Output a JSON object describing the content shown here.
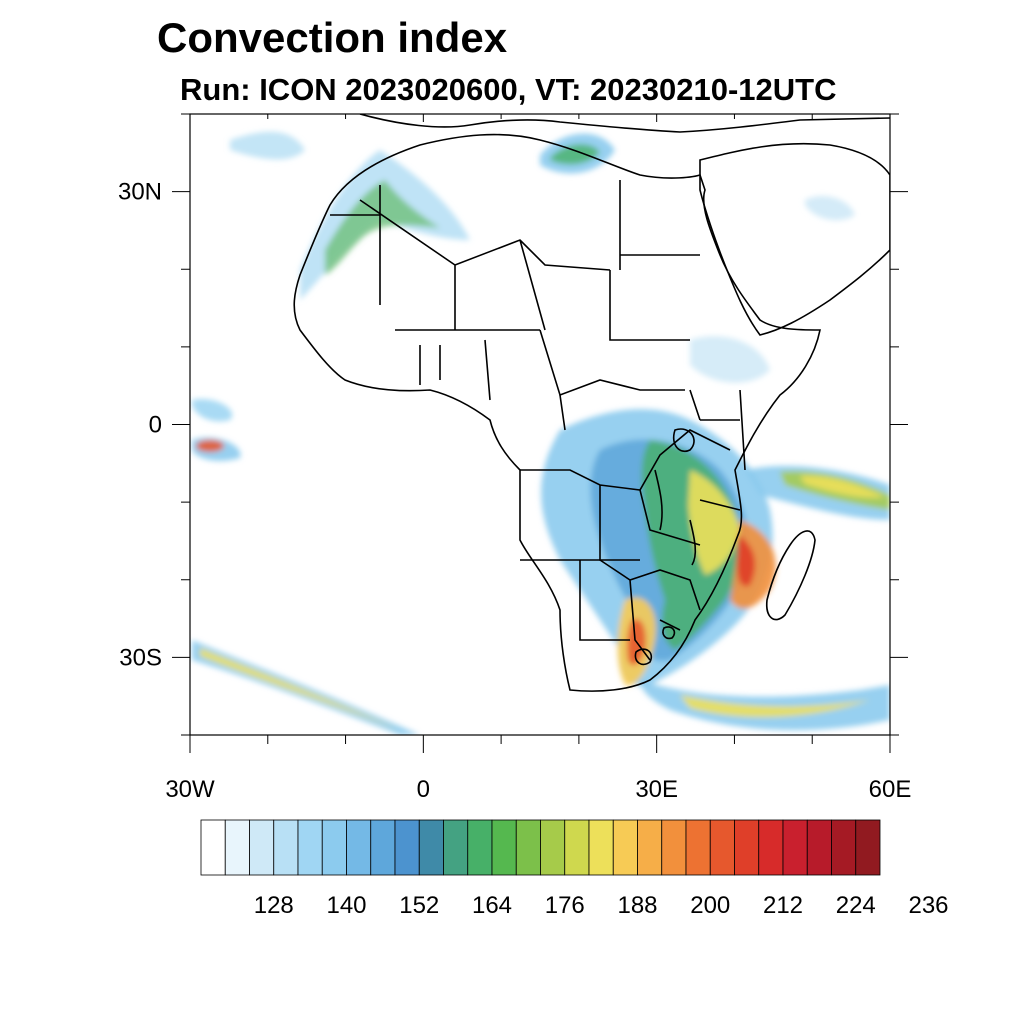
{
  "header": {
    "title": "Convection index",
    "subtitle": "Run: ICON 2023020600,  VT: 20230210-12UTC"
  },
  "map": {
    "lon_range": [
      -30,
      60
    ],
    "lat_range": [
      -40,
      40
    ],
    "lat_ticks": [
      {
        "value": 30,
        "label": "30N"
      },
      {
        "value": 0,
        "label": "0"
      },
      {
        "value": -30,
        "label": "30S"
      }
    ],
    "lon_ticks": [
      {
        "value": -30,
        "label": "30W"
      },
      {
        "value": 0,
        "label": "0"
      },
      {
        "value": 30,
        "label": "30E"
      },
      {
        "value": 60,
        "label": "60E"
      }
    ],
    "field_colors": {
      "low": "#8ecde8",
      "mid": "#4aab5e",
      "high": "#f0d24a",
      "max": "#e0432a"
    }
  },
  "colorbar": {
    "colors": [
      "#ffffff",
      "#e8f5fc",
      "#cfe9f7",
      "#b8e0f5",
      "#a0d6f3",
      "#8ccbee",
      "#74b9e6",
      "#5ea7db",
      "#4c93cf",
      "#3f8aa8",
      "#44a282",
      "#47b068",
      "#55b84f",
      "#7cc04a",
      "#a6cb4a",
      "#cfd84e",
      "#ede05a",
      "#f7cb55",
      "#f6ae48",
      "#f2903c",
      "#ed7232",
      "#e6582d",
      "#df3f29",
      "#d72b2a",
      "#c9202e",
      "#b71b2a",
      "#a51a24",
      "#911a20"
    ],
    "labels": [
      "128",
      "140",
      "152",
      "164",
      "176",
      "188",
      "200",
      "212",
      "224",
      "236"
    ]
  }
}
